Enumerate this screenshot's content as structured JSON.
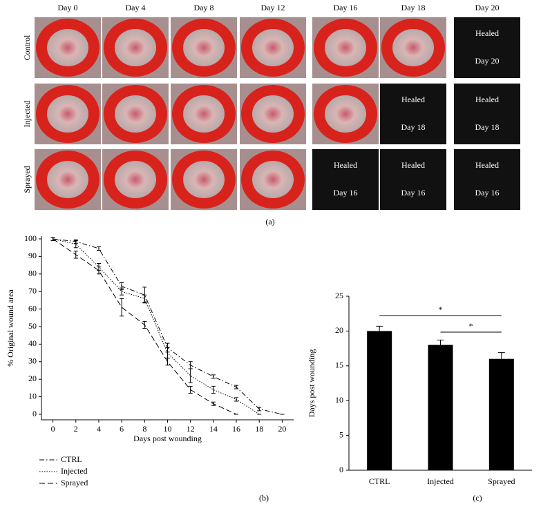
{
  "photo_grid": {
    "columns": [
      "Day 0",
      "Day 4",
      "Day 8",
      "Day 12",
      "Day 16",
      "Day 18",
      "Day 20"
    ],
    "rows": [
      {
        "label": "Control",
        "cells": [
          null,
          null,
          null,
          null,
          null,
          null,
          {
            "line1": "Healed",
            "line2": "Day 20"
          }
        ]
      },
      {
        "label": "Injected",
        "cells": [
          null,
          null,
          null,
          null,
          null,
          {
            "line1": "Healed",
            "line2": "Day 18"
          },
          {
            "line1": "Healed",
            "line2": "Day 18"
          }
        ]
      },
      {
        "label": "Sprayed",
        "cells": [
          null,
          null,
          null,
          null,
          {
            "line1": "Healed",
            "line2": "Day 16"
          },
          {
            "line1": "Healed",
            "line2": "Day 16"
          },
          {
            "line1": "Healed",
            "line2": "Day 16"
          }
        ]
      }
    ]
  },
  "panel_labels": [
    "(a)",
    "(b)",
    "(c)"
  ],
  "chart_data": [
    {
      "type": "line",
      "x_label": "Days post wounding",
      "y_label": "% Original wound area",
      "x": [
        0,
        2,
        4,
        6,
        8,
        10,
        12,
        14,
        16,
        18,
        20
      ],
      "xlim": [
        -1,
        21
      ],
      "xticks": [
        0,
        2,
        4,
        6,
        8,
        10,
        12,
        14,
        16,
        18,
        20
      ],
      "ylim": [
        0,
        100
      ],
      "yticks": [
        0,
        10,
        20,
        30,
        40,
        50,
        60,
        70,
        80,
        90,
        100
      ],
      "legend": "bottom-left",
      "series": [
        {
          "name": "CTRL",
          "color": "#000000",
          "dash": "7 3 1.5 3",
          "values": [
            100,
            98.5,
            94.5,
            73,
            68,
            38,
            28,
            21.5,
            15.5,
            3,
            0
          ],
          "errors": [
            1,
            1,
            1,
            2,
            4.5,
            2.5,
            2,
            1,
            1,
            1,
            0
          ]
        },
        {
          "name": "Injected",
          "color": "#000000",
          "dash": "1.5 2",
          "values": [
            100,
            97,
            84,
            70,
            66,
            35,
            22,
            14,
            8.5,
            0,
            null
          ],
          "errors": [
            1,
            2,
            2,
            2,
            2,
            3,
            4,
            2,
            1,
            0,
            null
          ]
        },
        {
          "name": "Sprayed",
          "color": "#000000",
          "dash": "8 4",
          "values": [
            100,
            91,
            82,
            61,
            51,
            30,
            14,
            6,
            0,
            null,
            null
          ],
          "errors": [
            1,
            2,
            2,
            5,
            2,
            2,
            2,
            1,
            0,
            null,
            null
          ]
        }
      ]
    },
    {
      "type": "bar",
      "y_label": "Days post wounding",
      "categories": [
        "CTRL",
        "Injected",
        "Sprayed"
      ],
      "values": [
        20,
        18,
        16
      ],
      "errors": [
        0.7,
        0.7,
        0.9
      ],
      "color": "#000000",
      "ylim": [
        0,
        25
      ],
      "yticks": [
        0,
        5,
        10,
        15,
        20,
        25
      ],
      "significance": [
        {
          "pair": [
            0,
            2
          ],
          "label": "*"
        },
        {
          "pair": [
            1,
            2
          ],
          "label": "*"
        }
      ]
    }
  ]
}
